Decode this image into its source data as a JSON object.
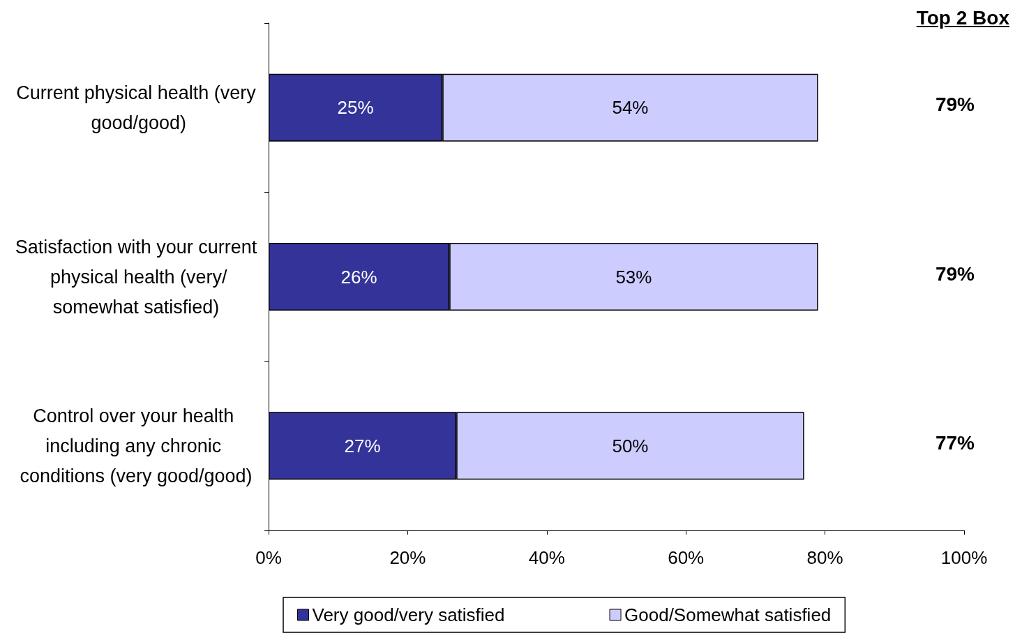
{
  "chart_data": {
    "type": "bar",
    "orientation": "horizontal",
    "stacked": true,
    "categories": [
      "Current physical health (very good/good)",
      "Satisfaction with your current physical health (very/somewhat satisfied)",
      "Control over your health including any chronic conditions (very good/good)"
    ],
    "series": [
      {
        "name": "Very good/very satisfied",
        "color": "#333399",
        "values": [
          25,
          26,
          27
        ],
        "value_labels": [
          "25%",
          "26%",
          "27%"
        ]
      },
      {
        "name": "Good/Somewhat satisfied",
        "color": "#ccccff",
        "values": [
          54,
          53,
          50
        ],
        "value_labels": [
          "54%",
          "53%",
          "50%"
        ]
      }
    ],
    "annotations": [
      "Top 2 Box",
      "79%",
      "79%",
      "77%"
    ],
    "xlim": [
      0,
      100
    ],
    "xticks": [
      {
        "value": 0,
        "label": "0%"
      },
      {
        "value": 20,
        "label": "20%"
      },
      {
        "value": 40,
        "label": "40%"
      },
      {
        "value": 60,
        "label": "60%"
      },
      {
        "value": 80,
        "label": "80%"
      },
      {
        "value": 100,
        "label": "100%"
      }
    ],
    "grid": false,
    "legend": "bottom"
  }
}
